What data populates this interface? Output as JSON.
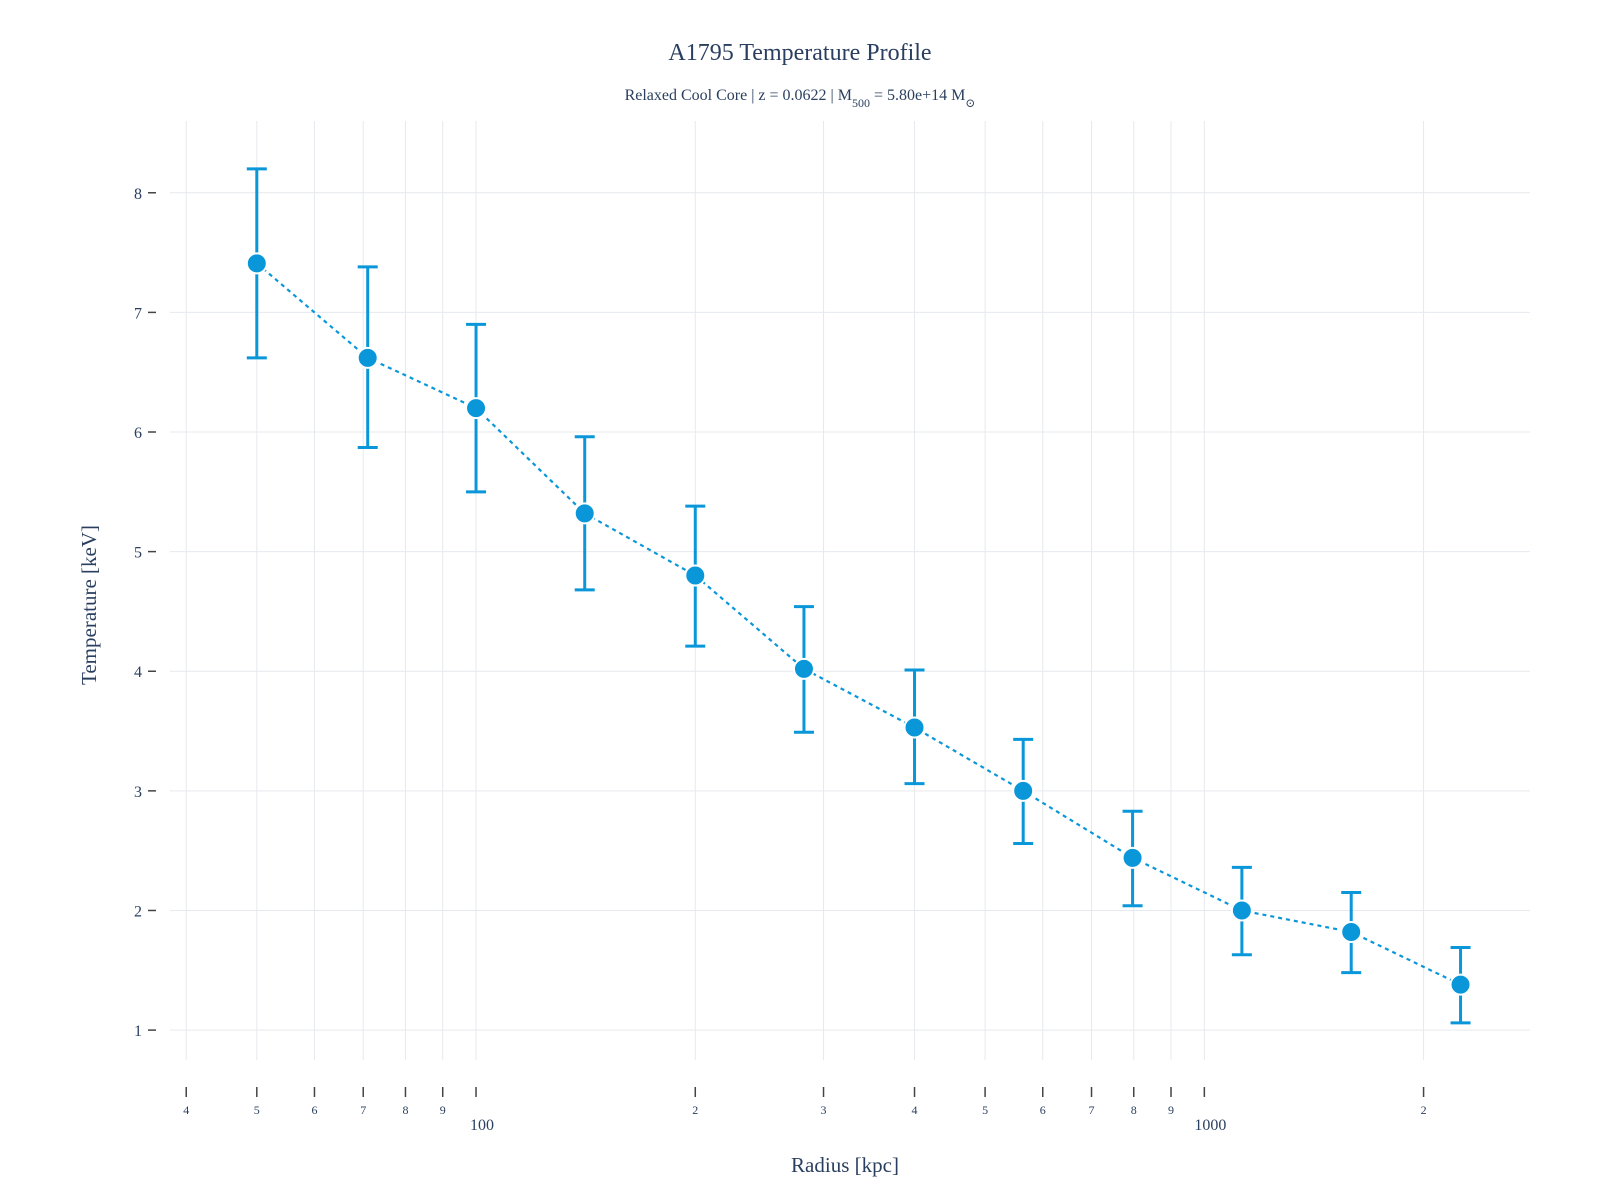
{
  "chart_data": {
    "type": "scatter",
    "title": "A1795 Temperature Profile",
    "subtitle": {
      "prefix": "Relaxed Cool Core | z = 0.0622 | M",
      "mass_subscript": "500",
      "middle": " = 5.80e+14 M",
      "sun_subscript": "⊙"
    },
    "xlabel": "Radius [kpc]",
    "ylabel": "Temperature [keV]",
    "x_scale": "log",
    "xlim": [
      38,
      2800
    ],
    "ylim": [
      0.75,
      8.6
    ],
    "grid": true,
    "x_ticks": [
      {
        "value": 40,
        "label": "4"
      },
      {
        "value": 50,
        "label": "5"
      },
      {
        "value": 60,
        "label": "6"
      },
      {
        "value": 70,
        "label": "7"
      },
      {
        "value": 80,
        "label": "8"
      },
      {
        "value": 90,
        "label": "9"
      },
      {
        "value": 100,
        "label": "",
        "decade": "100"
      },
      {
        "value": 200,
        "label": "2"
      },
      {
        "value": 300,
        "label": "3"
      },
      {
        "value": 400,
        "label": "4"
      },
      {
        "value": 500,
        "label": "5"
      },
      {
        "value": 600,
        "label": "6"
      },
      {
        "value": 700,
        "label": "7"
      },
      {
        "value": 800,
        "label": "8"
      },
      {
        "value": 900,
        "label": "9"
      },
      {
        "value": 1000,
        "label": "",
        "decade": "1000"
      },
      {
        "value": 2000,
        "label": "2"
      }
    ],
    "y_ticks": [
      1,
      2,
      3,
      4,
      5,
      6,
      7,
      8
    ],
    "series": [
      {
        "color": "#0a97d9",
        "line_style": "dotted",
        "points": [
          {
            "x": 50,
            "y": 7.41,
            "lo": 6.62,
            "hi": 8.2
          },
          {
            "x": 71,
            "y": 6.62,
            "lo": 5.87,
            "hi": 7.38
          },
          {
            "x": 100,
            "y": 6.2,
            "lo": 5.5,
            "hi": 6.9
          },
          {
            "x": 141,
            "y": 5.32,
            "lo": 4.68,
            "hi": 5.96
          },
          {
            "x": 200,
            "y": 4.8,
            "lo": 4.21,
            "hi": 5.38
          },
          {
            "x": 282,
            "y": 4.02,
            "lo": 3.49,
            "hi": 4.54
          },
          {
            "x": 400,
            "y": 3.53,
            "lo": 3.06,
            "hi": 4.01
          },
          {
            "x": 564,
            "y": 3.0,
            "lo": 2.56,
            "hi": 3.43
          },
          {
            "x": 797,
            "y": 2.44,
            "lo": 2.04,
            "hi": 2.83
          },
          {
            "x": 1126,
            "y": 2.0,
            "lo": 1.63,
            "hi": 2.36
          },
          {
            "x": 1591,
            "y": 1.82,
            "lo": 1.48,
            "hi": 2.15
          },
          {
            "x": 2248,
            "y": 1.38,
            "lo": 1.06,
            "hi": 1.69
          }
        ]
      }
    ]
  }
}
